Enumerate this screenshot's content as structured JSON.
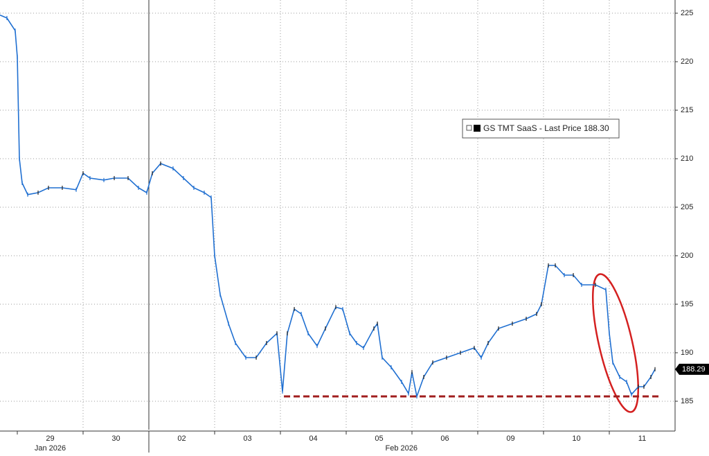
{
  "chart_data": {
    "type": "line",
    "series": [
      {
        "name": "GS TMT SaaS - Last Price 188.30",
        "color": "#1f6fd1",
        "x": [
          -0.263,
          -0.158,
          -0.032,
          0,
          0.032,
          0.074,
          0.158,
          0.316,
          0.474,
          0.684,
          0.895,
          1.0,
          1.105,
          1.316,
          1.474,
          1.684,
          1.842,
          1.968,
          2.053,
          2.179,
          2.368,
          2.526,
          2.684,
          2.842,
          2.947,
          3.0,
          3.084,
          3.211,
          3.316,
          3.474,
          3.632,
          3.789,
          3.947,
          4.032,
          4.105,
          4.211,
          4.316,
          4.421,
          4.558,
          4.684,
          4.842,
          4.947,
          5.053,
          5.158,
          5.263,
          5.421,
          5.474,
          5.547,
          5.684,
          5.842,
          5.947,
          6.0,
          6.074,
          6.179,
          6.316,
          6.526,
          6.737,
          6.947,
          7.053,
          7.158,
          7.316,
          7.526,
          7.737,
          7.895,
          7.968,
          8.074,
          8.179,
          8.316,
          8.453,
          8.579,
          8.789,
          8.947,
          9.0,
          9.053,
          9.158,
          9.263,
          9.337,
          9.442,
          9.526,
          9.632,
          9.695
        ],
        "values": [
          224.8,
          224.5,
          223.2,
          220.5,
          210,
          207.5,
          206.3,
          206.5,
          207,
          207,
          206.8,
          208.5,
          208,
          207.8,
          208,
          208,
          207,
          206.5,
          208.5,
          209.5,
          209,
          208,
          207,
          206.5,
          206,
          200,
          196,
          193,
          191,
          189.5,
          189.5,
          191,
          192,
          186,
          192,
          194.5,
          194,
          192,
          190.7,
          192.5,
          194.7,
          194.5,
          192,
          191,
          190.5,
          192.5,
          193,
          189.5,
          188.5,
          187,
          185.8,
          188,
          185.5,
          187.5,
          189,
          189.5,
          190,
          190.5,
          189.5,
          191,
          192.5,
          193,
          193.5,
          194,
          195,
          199,
          199,
          198,
          198,
          197,
          197,
          196.5,
          192,
          189,
          187.5,
          187,
          185.7,
          186.5,
          186.5,
          187.5,
          188.3
        ]
      }
    ],
    "xlim": [
      -0.263,
      10.0
    ],
    "xticks": [
      {
        "value": 0.5,
        "label": "29"
      },
      {
        "value": 1.5,
        "label": "30"
      },
      {
        "value": 2.5,
        "label": "02"
      },
      {
        "value": 3.5,
        "label": "03"
      },
      {
        "value": 4.5,
        "label": "04"
      },
      {
        "value": 5.5,
        "label": "05"
      },
      {
        "value": 6.5,
        "label": "06"
      },
      {
        "value": 7.5,
        "label": "09"
      },
      {
        "value": 8.5,
        "label": "10"
      },
      {
        "value": 9.5,
        "label": "11"
      }
    ],
    "x_group_labels": [
      {
        "value": 0.5,
        "label": "Jan 2026"
      },
      {
        "value": 5.84,
        "label": "Feb 2026"
      }
    ],
    "ylim": [
      182.07,
      226.36
    ],
    "yticks": [
      185,
      190,
      195,
      200,
      205,
      210,
      215,
      220,
      225
    ],
    "last_price_tag": 188.29,
    "reference_line": {
      "value": 185.5,
      "x_range": [
        4.053,
        9.789
      ],
      "color": "#a01e1e"
    },
    "grid": true
  }
}
